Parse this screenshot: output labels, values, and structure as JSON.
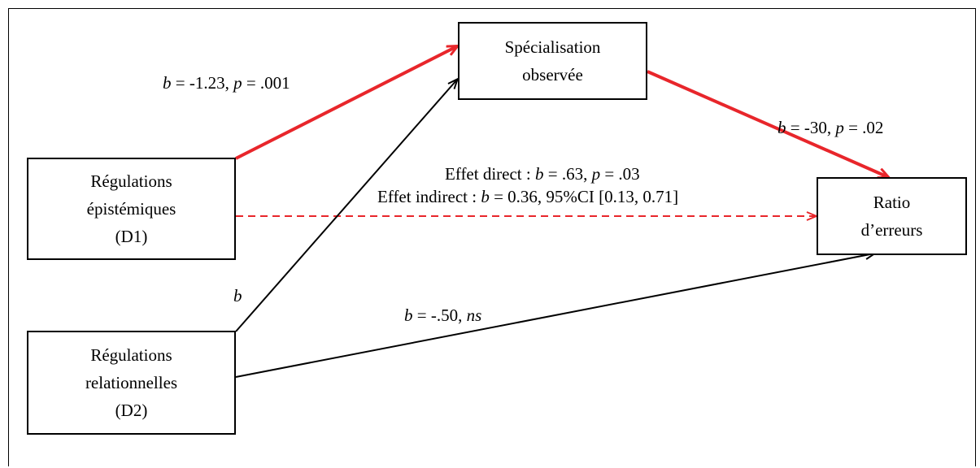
{
  "nodes": {
    "specialisation": {
      "line1": "Spécialisation",
      "line2": "observée"
    },
    "epistemiques": {
      "line1": "Régulations",
      "line2": "épistémiques",
      "line3": "(D1)"
    },
    "relationnelles": {
      "line1": "Régulations",
      "line2": "relationnelles",
      "line3": "(D2)"
    },
    "ratio": {
      "line1": "Ratio",
      "line2": "d’erreurs"
    }
  },
  "paths": {
    "d1_to_spec": {
      "b_sym": "b",
      "b_val": " = -1.23, ",
      "p_sym": "p",
      "p_val": " = .001"
    },
    "spec_to_ratio": {
      "b_sym": "b",
      "b_val": " = -30, ",
      "p_sym": "p",
      "p_val": " = .02"
    },
    "d2_to_spec": {
      "b_sym": "b"
    },
    "d2_to_ratio": {
      "b_sym": "b",
      "b_val": " = -.50, ",
      "ns": "ns"
    },
    "direct": {
      "prefix": "Effet direct : ",
      "b_sym": "b",
      "b_val": " = .63, ",
      "p_sym": "p",
      "p_val": " = .03"
    },
    "indirect": {
      "prefix": "Effet indirect : ",
      "b_sym": "b",
      "rest": " = 0.36, 95%CI [0.13, 0.71]"
    }
  },
  "colors": {
    "highlight": "#e8262b",
    "default": "#000000"
  }
}
